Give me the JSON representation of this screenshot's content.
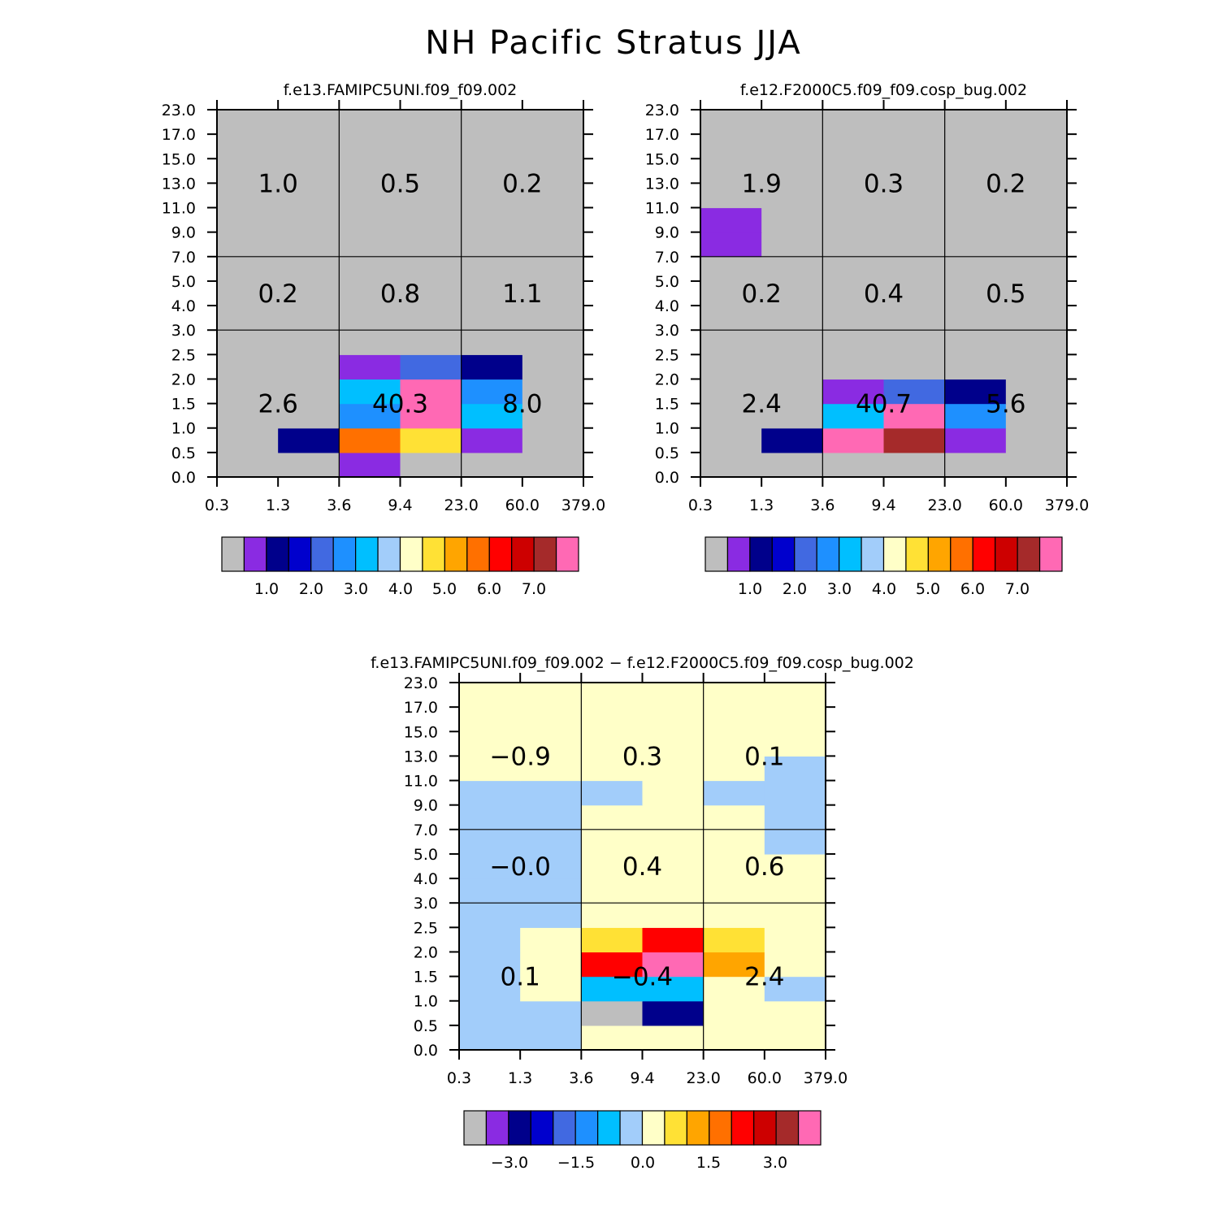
{
  "figure": {
    "title": "NH Pacific Stratus JJA"
  },
  "colors": [
    "#bebebe",
    "#8a2be2",
    "#00008b",
    "#0000cd",
    "#4169e1",
    "#1e90ff",
    "#00bfff",
    "#a2cdfa",
    "#ffffc8",
    "#ffe135",
    "#ffa500",
    "#ff7000",
    "#ff0000",
    "#cd0000",
    "#a52a2a",
    "#ff69b4"
  ],
  "chart_data": [
    {
      "type": "heatmap",
      "title": "f.e13.FAMIPC5UNI.f09_f09.002",
      "x_ticks": [
        "0.3",
        "1.3",
        "3.6",
        "9.4",
        "23.0",
        "60.0",
        "379.0"
      ],
      "y_ticks": [
        "0.0",
        "0.5",
        "1.0",
        "1.5",
        "2.0",
        "2.5",
        "3.0",
        "4.0",
        "5.0",
        "7.0",
        "9.0",
        "11.0",
        "13.0",
        "15.0",
        "17.0",
        "23.0"
      ],
      "cells_by_row": [
        [
          "gray",
          "gray",
          "purple",
          "gray",
          "gray",
          "gray"
        ],
        [
          "gray",
          "navy",
          "orange_red",
          "gold",
          "purple",
          "gray"
        ],
        [
          "gray",
          "gray",
          "dodger_blue",
          "hot_pink",
          "deep_sky_blue",
          "gray"
        ],
        [
          "gray",
          "gray",
          "deep_sky_blue",
          "hot_pink",
          "dodger_blue",
          "gray"
        ],
        [
          "gray",
          "gray",
          "purple",
          "royal_blue",
          "navy",
          "gray"
        ],
        [
          "gray",
          "gray",
          "gray",
          "gray",
          "gray",
          "gray"
        ],
        [
          "gray",
          "gray",
          "gray",
          "gray",
          "gray",
          "gray"
        ],
        [
          "gray",
          "gray",
          "gray",
          "gray",
          "gray",
          "gray"
        ],
        [
          "gray",
          "gray",
          "gray",
          "gray",
          "gray",
          "gray"
        ],
        [
          "gray",
          "gray",
          "gray",
          "gray",
          "gray",
          "gray"
        ],
        [
          "gray",
          "gray",
          "gray",
          "gray",
          "gray",
          "gray"
        ],
        [
          "gray",
          "gray",
          "gray",
          "gray",
          "gray",
          "gray"
        ],
        [
          "gray",
          "gray",
          "gray",
          "gray",
          "gray",
          "gray"
        ],
        [
          "gray",
          "gray",
          "gray",
          "gray",
          "gray",
          "gray"
        ],
        [
          "gray",
          "gray",
          "gray",
          "gray",
          "gray",
          "gray"
        ]
      ],
      "box_values": [
        [
          "2.6",
          "40.3",
          "8.0"
        ],
        [
          "0.2",
          "0.8",
          "1.1"
        ],
        [
          "1.0",
          "0.5",
          "0.2"
        ]
      ],
      "colorbar_labels": [
        "1.0",
        "2.0",
        "3.0",
        "4.0",
        "5.0",
        "6.0",
        "7.0"
      ]
    },
    {
      "type": "heatmap",
      "title": "f.e12.F2000C5.f09_f09.cosp_bug.002",
      "x_ticks": [
        "0.3",
        "1.3",
        "3.6",
        "9.4",
        "23.0",
        "60.0",
        "379.0"
      ],
      "y_ticks": [
        "0.0",
        "0.5",
        "1.0",
        "1.5",
        "2.0",
        "2.5",
        "3.0",
        "4.0",
        "5.0",
        "7.0",
        "9.0",
        "11.0",
        "13.0",
        "15.0",
        "17.0",
        "23.0"
      ],
      "cells_by_row": [
        [
          "gray",
          "gray",
          "gray",
          "gray",
          "gray",
          "gray"
        ],
        [
          "gray",
          "navy",
          "hot_pink",
          "brown",
          "purple",
          "gray"
        ],
        [
          "gray",
          "gray",
          "deep_sky_blue",
          "hot_pink",
          "dodger_blue",
          "gray"
        ],
        [
          "gray",
          "gray",
          "purple",
          "royal_blue",
          "navy",
          "gray"
        ],
        [
          "gray",
          "gray",
          "gray",
          "gray",
          "gray",
          "gray"
        ],
        [
          "gray",
          "gray",
          "gray",
          "gray",
          "gray",
          "gray"
        ],
        [
          "gray",
          "gray",
          "gray",
          "gray",
          "gray",
          "gray"
        ],
        [
          "gray",
          "gray",
          "gray",
          "gray",
          "gray",
          "gray"
        ],
        [
          "gray",
          "gray",
          "gray",
          "gray",
          "gray",
          "gray"
        ],
        [
          "purple",
          "gray",
          "gray",
          "gray",
          "gray",
          "gray"
        ],
        [
          "purple",
          "gray",
          "gray",
          "gray",
          "gray",
          "gray"
        ],
        [
          "gray",
          "gray",
          "gray",
          "gray",
          "gray",
          "gray"
        ],
        [
          "gray",
          "gray",
          "gray",
          "gray",
          "gray",
          "gray"
        ],
        [
          "gray",
          "gray",
          "gray",
          "gray",
          "gray",
          "gray"
        ],
        [
          "gray",
          "gray",
          "gray",
          "gray",
          "gray",
          "gray"
        ]
      ],
      "box_values": [
        [
          "2.4",
          "40.7",
          "5.6"
        ],
        [
          "0.2",
          "0.4",
          "0.5"
        ],
        [
          "1.9",
          "0.3",
          "0.2"
        ]
      ],
      "colorbar_labels": [
        "1.0",
        "2.0",
        "3.0",
        "4.0",
        "5.0",
        "6.0",
        "7.0"
      ]
    },
    {
      "type": "heatmap",
      "title": "f.e13.FAMIPC5UNI.f09_f09.002 − f.e12.F2000C5.f09_f09.cosp_bug.002",
      "x_ticks": [
        "0.3",
        "1.3",
        "3.6",
        "9.4",
        "23.0",
        "60.0",
        "379.0"
      ],
      "y_ticks": [
        "0.0",
        "0.5",
        "1.0",
        "1.5",
        "2.0",
        "2.5",
        "3.0",
        "4.0",
        "5.0",
        "7.0",
        "9.0",
        "11.0",
        "13.0",
        "15.0",
        "17.0",
        "23.0"
      ],
      "cells_by_row": [
        [
          "light_blue",
          "light_blue",
          "light_yellow",
          "light_yellow",
          "light_yellow",
          "light_yellow"
        ],
        [
          "light_blue",
          "light_blue",
          "gray",
          "navy",
          "light_yellow",
          "light_yellow"
        ],
        [
          "light_blue",
          "light_yellow",
          "deep_sky_blue",
          "deep_sky_blue",
          "light_yellow",
          "light_blue"
        ],
        [
          "light_blue",
          "light_yellow",
          "red",
          "hot_pink",
          "orange",
          "light_yellow"
        ],
        [
          "light_blue",
          "light_yellow",
          "gold",
          "red",
          "gold",
          "light_yellow"
        ],
        [
          "light_blue",
          "light_blue",
          "light_yellow",
          "light_yellow",
          "light_yellow",
          "light_yellow"
        ],
        [
          "light_blue",
          "light_blue",
          "light_yellow",
          "light_yellow",
          "light_yellow",
          "light_yellow"
        ],
        [
          "light_blue",
          "light_blue",
          "light_yellow",
          "light_yellow",
          "light_yellow",
          "light_yellow"
        ],
        [
          "light_blue",
          "light_blue",
          "light_yellow",
          "light_yellow",
          "light_yellow",
          "light_blue"
        ],
        [
          "light_blue",
          "light_blue",
          "light_yellow",
          "light_yellow",
          "light_yellow",
          "light_blue"
        ],
        [
          "light_blue",
          "light_blue",
          "light_blue",
          "light_yellow",
          "light_blue",
          "light_blue"
        ],
        [
          "light_yellow",
          "light_yellow",
          "light_yellow",
          "light_yellow",
          "light_yellow",
          "light_blue"
        ],
        [
          "light_yellow",
          "light_yellow",
          "light_yellow",
          "light_yellow",
          "light_yellow",
          "light_yellow"
        ],
        [
          "light_yellow",
          "light_yellow",
          "light_yellow",
          "light_yellow",
          "light_yellow",
          "light_yellow"
        ],
        [
          "light_yellow",
          "light_yellow",
          "light_yellow",
          "light_yellow",
          "light_yellow",
          "light_yellow"
        ]
      ],
      "box_values": [
        [
          "0.1",
          "−0.4",
          "2.4"
        ],
        [
          "−0.0",
          "0.4",
          "0.6"
        ],
        [
          "−0.9",
          "0.3",
          "0.1"
        ]
      ],
      "colorbar_labels": [
        "−3.0",
        "−1.5",
        "0.0",
        "1.5",
        "3.0"
      ]
    }
  ]
}
